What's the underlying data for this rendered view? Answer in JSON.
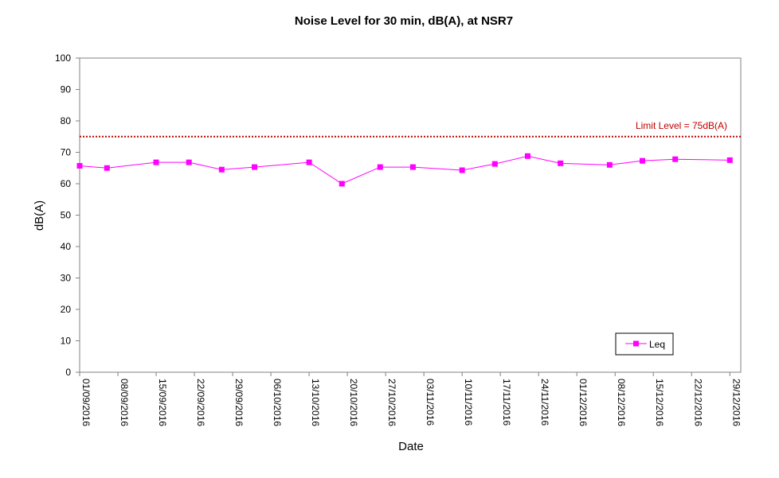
{
  "chart_data": {
    "type": "line",
    "title": "Noise Level for 30 min, dB(A), at NSR7",
    "xlabel": "Date",
    "ylabel": "dB(A)",
    "ylim": [
      0,
      100
    ],
    "yticks": [
      0,
      10,
      20,
      30,
      40,
      50,
      60,
      70,
      80,
      90,
      100
    ],
    "xlim": [
      "2016-09-01",
      "2016-12-31"
    ],
    "xticks": [
      "01/09/2016",
      "08/09/2016",
      "15/09/2016",
      "22/09/2016",
      "29/09/2016",
      "06/10/2016",
      "13/10/2016",
      "20/10/2016",
      "27/10/2016",
      "03/11/2016",
      "10/11/2016",
      "17/11/2016",
      "24/11/2016",
      "01/12/2016",
      "08/12/2016",
      "15/12/2016",
      "22/12/2016",
      "29/12/2016"
    ],
    "grid": false,
    "legend_position": "bottom-right",
    "series": [
      {
        "name": "Leq",
        "color": "#ff00ff",
        "marker": "square",
        "x": [
          "2016-09-01",
          "2016-09-06",
          "2016-09-15",
          "2016-09-21",
          "2016-09-27",
          "2016-10-03",
          "2016-10-13",
          "2016-10-19",
          "2016-10-26",
          "2016-11-01",
          "2016-11-10",
          "2016-11-16",
          "2016-11-22",
          "2016-11-28",
          "2016-12-07",
          "2016-12-13",
          "2016-12-19",
          "2016-12-29"
        ],
        "y": [
          65.7,
          65.0,
          66.8,
          66.8,
          64.5,
          65.3,
          66.8,
          60.0,
          65.3,
          65.3,
          64.3,
          66.3,
          68.8,
          66.5,
          66.0,
          67.3,
          67.8,
          67.5
        ]
      }
    ],
    "limit_line": {
      "value": 75,
      "label": "Limit Level = 75dB(A)",
      "color": "#c00000",
      "style": "dotted"
    }
  }
}
